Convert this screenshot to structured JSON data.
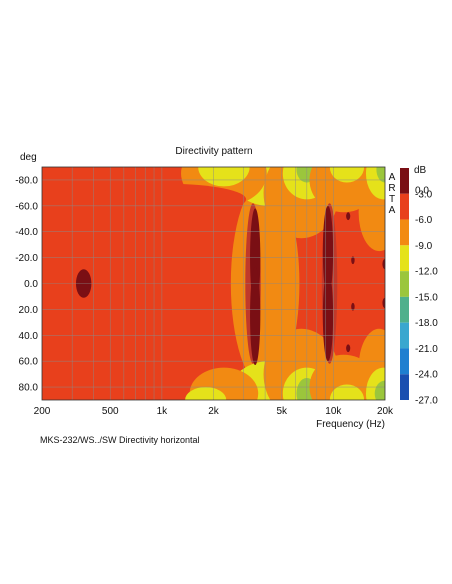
{
  "caption": "MKS-232/WS../SW Directivity horizontal",
  "watermark": "ARTA",
  "chart_data": {
    "type": "heatmap",
    "title": "Directivity pattern",
    "xlabel": "Frequency (Hz)",
    "ylabel": "deg",
    "x_scale": "log",
    "xlim": [
      200,
      20000
    ],
    "ylim": [
      -90,
      90
    ],
    "x_ticks": [
      {
        "value": 200,
        "label": "200"
      },
      {
        "value": 500,
        "label": "500"
      },
      {
        "value": 1000,
        "label": "1k"
      },
      {
        "value": 2000,
        "label": "2k"
      },
      {
        "value": 5000,
        "label": "5k"
      },
      {
        "value": 10000,
        "label": "10k"
      },
      {
        "value": 20000,
        "label": "20k"
      }
    ],
    "y_ticks": [
      {
        "value": -80,
        "label": "-80.0"
      },
      {
        "value": -60,
        "label": "-60.0"
      },
      {
        "value": -40,
        "label": "-40.0"
      },
      {
        "value": -20,
        "label": "-20.0"
      },
      {
        "value": 0,
        "label": "0.0"
      },
      {
        "value": 20,
        "label": "20.0"
      },
      {
        "value": 40,
        "label": "40.0"
      },
      {
        "value": 60,
        "label": "60.0"
      },
      {
        "value": 80,
        "label": "80.0"
      }
    ],
    "colorbar": {
      "unit": "dB",
      "levels": [
        {
          "label": "0.0",
          "color": "#c0392b"
        },
        {
          "label": "-3.0",
          "color": "#e8401c"
        },
        {
          "label": "-6.0",
          "color": "#f28a12"
        },
        {
          "label": "-9.0",
          "color": "#e5e21a"
        },
        {
          "label": "-12.0",
          "color": "#9bc63c"
        },
        {
          "label": "-15.0",
          "color": "#4fb08c"
        },
        {
          "label": "-18.0",
          "color": "#3aa7cf"
        },
        {
          "label": "-21.0",
          "color": "#1f7fd0"
        },
        {
          "label": "-24.0",
          "color": "#1a4fb0"
        },
        {
          "label": "-27.0",
          "color": "#123a8c"
        }
      ],
      "top_color": "#7a0f14"
    },
    "base_level_color": "#e8401c",
    "regions": [
      {
        "shape": "rect",
        "x": [
          200,
          20000
        ],
        "y": [
          -90,
          90
        ],
        "color": "#e8401c"
      },
      {
        "shape": "ellipse",
        "cx": 4000,
        "cy": 0,
        "rx_decades": 0.2,
        "ry": 80,
        "color": "#f28a12"
      },
      {
        "shape": "ellipse",
        "cx": 4200,
        "cy": -90,
        "rx_decades": 0.25,
        "ry": 30,
        "color": "#e5e21a"
      },
      {
        "shape": "ellipse",
        "cx": 4200,
        "cy": 90,
        "rx_decades": 0.25,
        "ry": 30,
        "color": "#e5e21a"
      },
      {
        "shape": "ellipse",
        "cx": 2300,
        "cy": -85,
        "rx_decades": 0.25,
        "ry": 25,
        "color": "#f28a12"
      },
      {
        "shape": "ellipse",
        "cx": 2300,
        "cy": -90,
        "rx_decades": 0.15,
        "ry": 15,
        "color": "#e5e21a"
      },
      {
        "shape": "ellipse",
        "cx": 2300,
        "cy": 85,
        "rx_decades": 0.2,
        "ry": 20,
        "color": "#f28a12"
      },
      {
        "shape": "ellipse",
        "cx": 1800,
        "cy": 90,
        "rx_decades": 0.12,
        "ry": 10,
        "color": "#e5e21a"
      },
      {
        "shape": "ellipse",
        "cx": 6500,
        "cy": -70,
        "rx_decades": 0.22,
        "ry": 35,
        "color": "#f28a12"
      },
      {
        "shape": "ellipse",
        "cx": 6500,
        "cy": 70,
        "rx_decades": 0.22,
        "ry": 35,
        "color": "#f28a12"
      },
      {
        "shape": "ellipse",
        "cx": 7000,
        "cy": -85,
        "rx_decades": 0.14,
        "ry": 20,
        "color": "#e5e21a"
      },
      {
        "shape": "ellipse",
        "cx": 7000,
        "cy": 85,
        "rx_decades": 0.14,
        "ry": 20,
        "color": "#e5e21a"
      },
      {
        "shape": "ellipse",
        "cx": 7000,
        "cy": -88,
        "rx_decades": 0.06,
        "ry": 10,
        "color": "#9bc63c"
      },
      {
        "shape": "ellipse",
        "cx": 7000,
        "cy": 85,
        "rx_decades": 0.06,
        "ry": 12,
        "color": "#9bc63c"
      },
      {
        "shape": "ellipse",
        "cx": 11500,
        "cy": -80,
        "rx_decades": 0.2,
        "ry": 25,
        "color": "#f28a12"
      },
      {
        "shape": "ellipse",
        "cx": 11500,
        "cy": 80,
        "rx_decades": 0.2,
        "ry": 25,
        "color": "#f28a12"
      },
      {
        "shape": "ellipse",
        "cx": 12000,
        "cy": -90,
        "rx_decades": 0.1,
        "ry": 12,
        "color": "#e5e21a"
      },
      {
        "shape": "ellipse",
        "cx": 12000,
        "cy": 90,
        "rx_decades": 0.1,
        "ry": 12,
        "color": "#e5e21a"
      },
      {
        "shape": "ellipse",
        "cx": 18500,
        "cy": -55,
        "rx_decades": 0.12,
        "ry": 30,
        "color": "#f28a12"
      },
      {
        "shape": "ellipse",
        "cx": 18500,
        "cy": 65,
        "rx_decades": 0.12,
        "ry": 30,
        "color": "#f28a12"
      },
      {
        "shape": "ellipse",
        "cx": 19500,
        "cy": -85,
        "rx_decades": 0.1,
        "ry": 20,
        "color": "#e5e21a"
      },
      {
        "shape": "ellipse",
        "cx": 19500,
        "cy": 85,
        "rx_decades": 0.1,
        "ry": 20,
        "color": "#e5e21a"
      },
      {
        "shape": "ellipse",
        "cx": 20000,
        "cy": -88,
        "rx_decades": 0.05,
        "ry": 10,
        "color": "#9bc63c"
      },
      {
        "shape": "ellipse",
        "cx": 20000,
        "cy": 85,
        "rx_decades": 0.06,
        "ry": 10,
        "color": "#9bc63c"
      },
      {
        "shape": "ellipse",
        "cx": 1100,
        "cy": -65,
        "rx_decades": 0.45,
        "ry": 12,
        "color": "#e8401c"
      },
      {
        "shape": "ellipse",
        "cx": 3400,
        "cy": 0,
        "rx_decades": 0.045,
        "ry": 62,
        "color": "#c0392b"
      },
      {
        "shape": "ellipse",
        "cx": 9500,
        "cy": 0,
        "rx_decades": 0.045,
        "ry": 62,
        "color": "#c0392b"
      },
      {
        "shape": "ellipse",
        "cx": 3500,
        "cy": -20,
        "rx_decades": 0.03,
        "ry": 38,
        "color": "#7a0f14"
      },
      {
        "shape": "ellipse",
        "cx": 3500,
        "cy": 25,
        "rx_decades": 0.03,
        "ry": 38,
        "color": "#7a0f14"
      },
      {
        "shape": "ellipse",
        "cx": 9300,
        "cy": -25,
        "rx_decades": 0.03,
        "ry": 35,
        "color": "#7a0f14"
      },
      {
        "shape": "ellipse",
        "cx": 9300,
        "cy": 25,
        "rx_decades": 0.03,
        "ry": 35,
        "color": "#7a0f14"
      },
      {
        "shape": "ellipse",
        "cx": 9300,
        "cy": 0,
        "rx_decades": 0.012,
        "ry": 12,
        "color": "#7a0f14"
      },
      {
        "shape": "ellipse",
        "cx": 350,
        "cy": 0,
        "rx_decades": 0.045,
        "ry": 11,
        "color": "#7a0f14"
      },
      {
        "shape": "ellipse",
        "cx": 12200,
        "cy": -52,
        "rx_decades": 0.012,
        "ry": 3,
        "color": "#7a0f14"
      },
      {
        "shape": "ellipse",
        "cx": 12200,
        "cy": 50,
        "rx_decades": 0.012,
        "ry": 3,
        "color": "#7a0f14"
      },
      {
        "shape": "ellipse",
        "cx": 13000,
        "cy": -18,
        "rx_decades": 0.01,
        "ry": 3,
        "color": "#7a0f14"
      },
      {
        "shape": "ellipse",
        "cx": 13000,
        "cy": 18,
        "rx_decades": 0.01,
        "ry": 3,
        "color": "#7a0f14"
      },
      {
        "shape": "ellipse",
        "cx": 20000,
        "cy": -15,
        "rx_decades": 0.015,
        "ry": 4,
        "color": "#7a0f14"
      },
      {
        "shape": "ellipse",
        "cx": 20000,
        "cy": 15,
        "rx_decades": 0.015,
        "ry": 4,
        "color": "#7a0f14"
      }
    ]
  }
}
